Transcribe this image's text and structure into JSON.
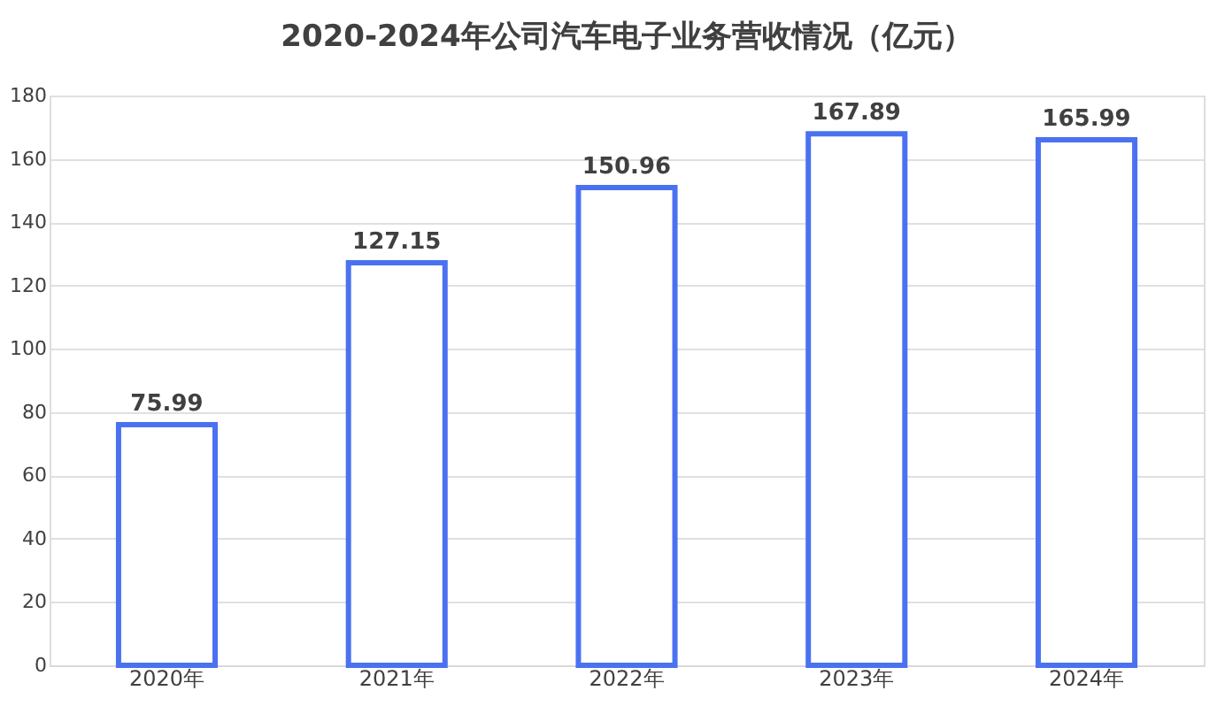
{
  "chart_data": {
    "type": "bar",
    "title": "2020-2024年公司汽车电子业务营收情况（亿元）",
    "categories": [
      "2020年",
      "2021年",
      "2022年",
      "2023年",
      "2024年"
    ],
    "values": [
      75.99,
      127.15,
      150.96,
      167.89,
      165.99
    ],
    "color": "#4a72f0",
    "ylim": [
      0,
      180
    ],
    "yticks": [
      0,
      20,
      40,
      60,
      80,
      100,
      120,
      140,
      160,
      180
    ],
    "grid": "y",
    "data_labels": true
  }
}
